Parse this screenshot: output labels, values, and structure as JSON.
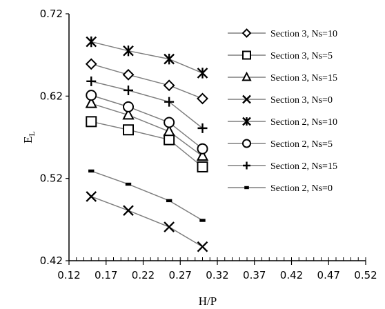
{
  "chart_data": {
    "type": "line",
    "title": "",
    "xlabel": "H/P",
    "ylabel": "E",
    "ylabel_subscript": "L",
    "xlim": [
      0.12,
      0.52
    ],
    "ylim": [
      0.42,
      0.72
    ],
    "xticks": [
      "0.12",
      "0.17",
      "0.22",
      "0.27",
      "0.32",
      "0.37",
      "0.42",
      "0.47",
      "0.52"
    ],
    "yticks": [
      "0.42",
      "0.52",
      "0.62",
      "0.72"
    ],
    "x_minor_step": 0.01,
    "grid": false,
    "legend_position": "right",
    "series": [
      {
        "name": "Section 3, Ns=10",
        "marker": "diamond",
        "x": [
          0.15,
          0.2,
          0.255,
          0.3
        ],
        "y": [
          0.659,
          0.646,
          0.633,
          0.617
        ]
      },
      {
        "name": "Section 3, Ns=5",
        "marker": "square",
        "x": [
          0.15,
          0.2,
          0.255,
          0.3
        ],
        "y": [
          0.589,
          0.579,
          0.567,
          0.534
        ]
      },
      {
        "name": "Section 3, Ns=15",
        "marker": "triangle",
        "x": [
          0.15,
          0.2,
          0.255,
          0.3
        ],
        "y": [
          0.611,
          0.597,
          0.577,
          0.547
        ]
      },
      {
        "name": "Section 3, Ns=0",
        "marker": "x",
        "x": [
          0.15,
          0.2,
          0.255,
          0.3
        ],
        "y": [
          0.498,
          0.481,
          0.461,
          0.437
        ]
      },
      {
        "name": "Section 2, Ns=10",
        "marker": "asterisk",
        "x": [
          0.15,
          0.2,
          0.255,
          0.3
        ],
        "y": [
          0.686,
          0.675,
          0.665,
          0.648
        ]
      },
      {
        "name": "Section 2, Ns=5",
        "marker": "circle",
        "x": [
          0.15,
          0.2,
          0.255,
          0.3
        ],
        "y": [
          0.621,
          0.607,
          0.588,
          0.556
        ]
      },
      {
        "name": "Section 2, Ns=15",
        "marker": "plus",
        "x": [
          0.15,
          0.2,
          0.255,
          0.3
        ],
        "y": [
          0.638,
          0.627,
          0.613,
          0.581
        ]
      },
      {
        "name": "Section 2, Ns=0",
        "marker": "dash",
        "x": [
          0.15,
          0.2,
          0.255,
          0.3
        ],
        "y": [
          0.529,
          0.513,
          0.493,
          0.469
        ]
      }
    ]
  }
}
